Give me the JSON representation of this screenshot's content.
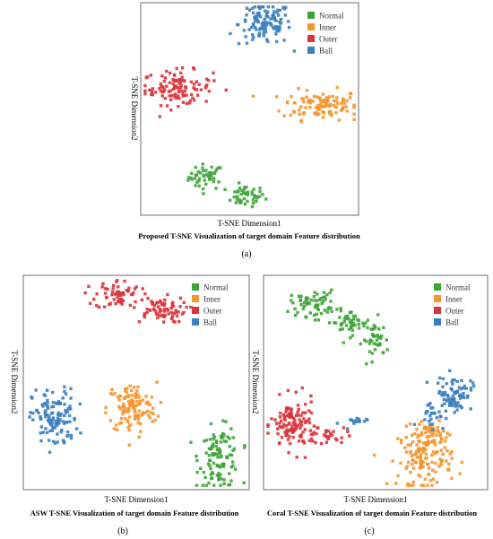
{
  "colors": {
    "Normal": "#3ea53a",
    "Inner": "#f5962f",
    "Outer": "#d9353b",
    "Ball": "#3b7fc0",
    "frame": "#6b6b6b",
    "text": "#000000"
  },
  "chart_data": [
    {
      "type": "scatter",
      "panel_label": "(a)",
      "title": "Proposed T-SNE Visualization of target domain Feature distribution",
      "xlabel": "T-SNE Dimension1",
      "ylabel": "T-SNE Dimension2",
      "xlim": [
        0,
        100
      ],
      "ylim": [
        0,
        100
      ],
      "ticks_visible": false,
      "grid": false,
      "legend": {
        "position": "top-right",
        "entries": [
          "Normal",
          "Inner",
          "Outer",
          "Ball"
        ]
      },
      "series": [
        {
          "name": "Normal",
          "color": "#3ea53a",
          "points": 90,
          "clusters": [
            {
              "cx": 30,
              "cy": 18,
              "sx": 4,
              "sy": 3,
              "n": 45
            },
            {
              "cx": 48,
              "cy": 9,
              "sx": 4.5,
              "sy": 2.5,
              "n": 45
            }
          ]
        },
        {
          "name": "Inner",
          "color": "#f5962f",
          "points": 110,
          "clusters": [
            {
              "cx": 83,
              "cy": 52,
              "sx": 9,
              "sy": 3.5,
              "n": 110
            }
          ]
        },
        {
          "name": "Outer",
          "color": "#d9353b",
          "points": 110,
          "clusters": [
            {
              "cx": 17,
              "cy": 60,
              "sx": 8,
              "sy": 4,
              "n": 110
            }
          ]
        },
        {
          "name": "Ball",
          "color": "#3b7fc0",
          "points": 120,
          "clusters": [
            {
              "cx": 57,
              "cy": 90,
              "sx": 6,
              "sy": 5,
              "n": 120
            }
          ]
        }
      ]
    },
    {
      "type": "scatter",
      "panel_label": "(b)",
      "title": "ASW T-SNE Visualization of target domain Feature distribution",
      "xlabel": "T-SNE Dimension1",
      "ylabel": "T-SNE Dimension2",
      "xlim": [
        0,
        100
      ],
      "ylim": [
        0,
        100
      ],
      "ticks_visible": false,
      "grid": false,
      "legend": {
        "position": "top-right",
        "entries": [
          "Normal",
          "Inner",
          "Outer",
          "Ball"
        ]
      },
      "series": [
        {
          "name": "Normal",
          "color": "#3ea53a",
          "points": 110,
          "clusters": [
            {
              "cx": 87,
              "cy": 15,
              "sx": 4.5,
              "sy": 7,
              "n": 110
            }
          ]
        },
        {
          "name": "Inner",
          "color": "#f5962f",
          "points": 120,
          "clusters": [
            {
              "cx": 48,
              "cy": 38,
              "sx": 5.5,
              "sy": 6,
              "n": 120
            }
          ]
        },
        {
          "name": "Outer",
          "color": "#d9353b",
          "points": 130,
          "clusters": [
            {
              "cx": 42,
              "cy": 91,
              "sx": 5,
              "sy": 3.5,
              "n": 60
            },
            {
              "cx": 60,
              "cy": 84,
              "sx": 6,
              "sy": 3,
              "n": 70
            }
          ]
        },
        {
          "name": "Ball",
          "color": "#3b7fc0",
          "points": 120,
          "clusters": [
            {
              "cx": 14,
              "cy": 33,
              "sx": 5,
              "sy": 7,
              "n": 120
            }
          ]
        }
      ]
    },
    {
      "type": "scatter",
      "panel_label": "(c)",
      "title": "Coral T-SNE Visualization of target domain Feature distribution",
      "xlabel": "T-SNE Dimension1",
      "ylabel": "T-SNE Dimension2",
      "xlim": [
        0,
        100
      ],
      "ylim": [
        0,
        100
      ],
      "ticks_visible": false,
      "grid": false,
      "legend": {
        "position": "top-right",
        "entries": [
          "Normal",
          "Inner",
          "Outer",
          "Ball"
        ]
      },
      "series": [
        {
          "name": "Normal",
          "color": "#3ea53a",
          "points": 150,
          "clusters": [
            {
              "cx": 22,
              "cy": 87,
              "sx": 5,
              "sy": 3,
              "n": 60
            },
            {
              "cx": 38,
              "cy": 78,
              "sx": 5,
              "sy": 3,
              "n": 50
            },
            {
              "cx": 50,
              "cy": 70,
              "sx": 3,
              "sy": 4,
              "n": 40
            }
          ]
        },
        {
          "name": "Inner",
          "color": "#f5962f",
          "points": 170,
          "clusters": [
            {
              "cx": 72,
              "cy": 15,
              "sx": 6,
              "sy": 7,
              "n": 140
            },
            {
              "cx": 75,
              "cy": 27,
              "sx": 3,
              "sy": 2,
              "n": 30
            }
          ]
        },
        {
          "name": "Outer",
          "color": "#d9353b",
          "points": 150,
          "clusters": [
            {
              "cx": 13,
              "cy": 30,
              "sx": 5,
              "sy": 6,
              "n": 120
            },
            {
              "cx": 28,
              "cy": 25,
              "sx": 5,
              "sy": 2.5,
              "n": 30
            }
          ]
        },
        {
          "name": "Ball",
          "color": "#3b7fc0",
          "points": 120,
          "clusters": [
            {
              "cx": 85,
              "cy": 45,
              "sx": 4,
              "sy": 4,
              "n": 80
            },
            {
              "cx": 75,
              "cy": 35,
              "sx": 3,
              "sy": 3,
              "n": 25
            },
            {
              "cx": 40,
              "cy": 31,
              "sx": 3,
              "sy": 1.5,
              "n": 15
            }
          ]
        }
      ]
    }
  ]
}
